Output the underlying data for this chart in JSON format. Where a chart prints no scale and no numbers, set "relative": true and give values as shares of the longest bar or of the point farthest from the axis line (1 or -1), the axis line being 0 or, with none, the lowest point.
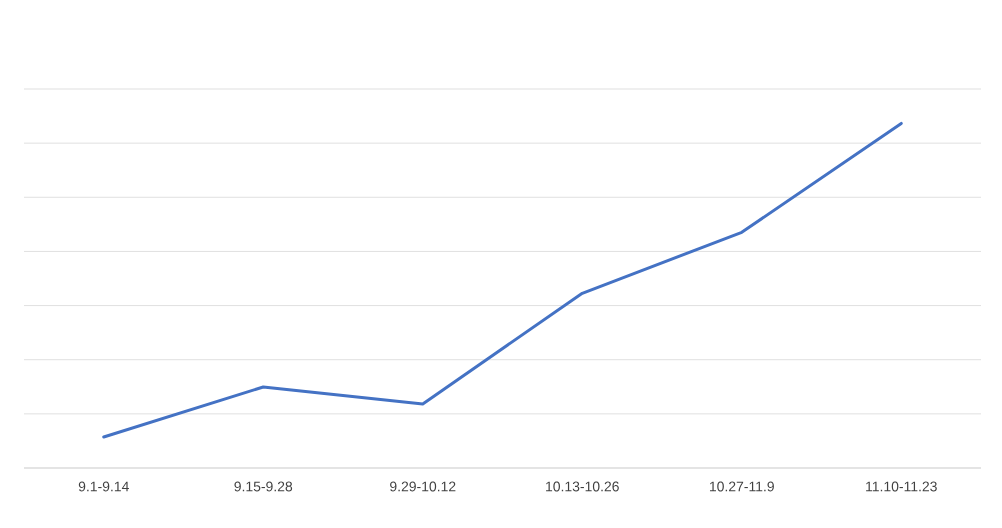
{
  "chart_data": {
    "type": "line",
    "relative": true,
    "grid": "y",
    "marker": "none",
    "line_style": "solid",
    "categories": [
      "9.1-9.14",
      "9.15-9.28",
      "9.29-10.12",
      "10.13-10.26",
      "10.27-11.9",
      "11.10-11.23"
    ],
    "values": [
      0.09,
      0.235,
      0.186,
      0.507,
      0.684,
      1
    ],
    "color": "#4472c4"
  }
}
